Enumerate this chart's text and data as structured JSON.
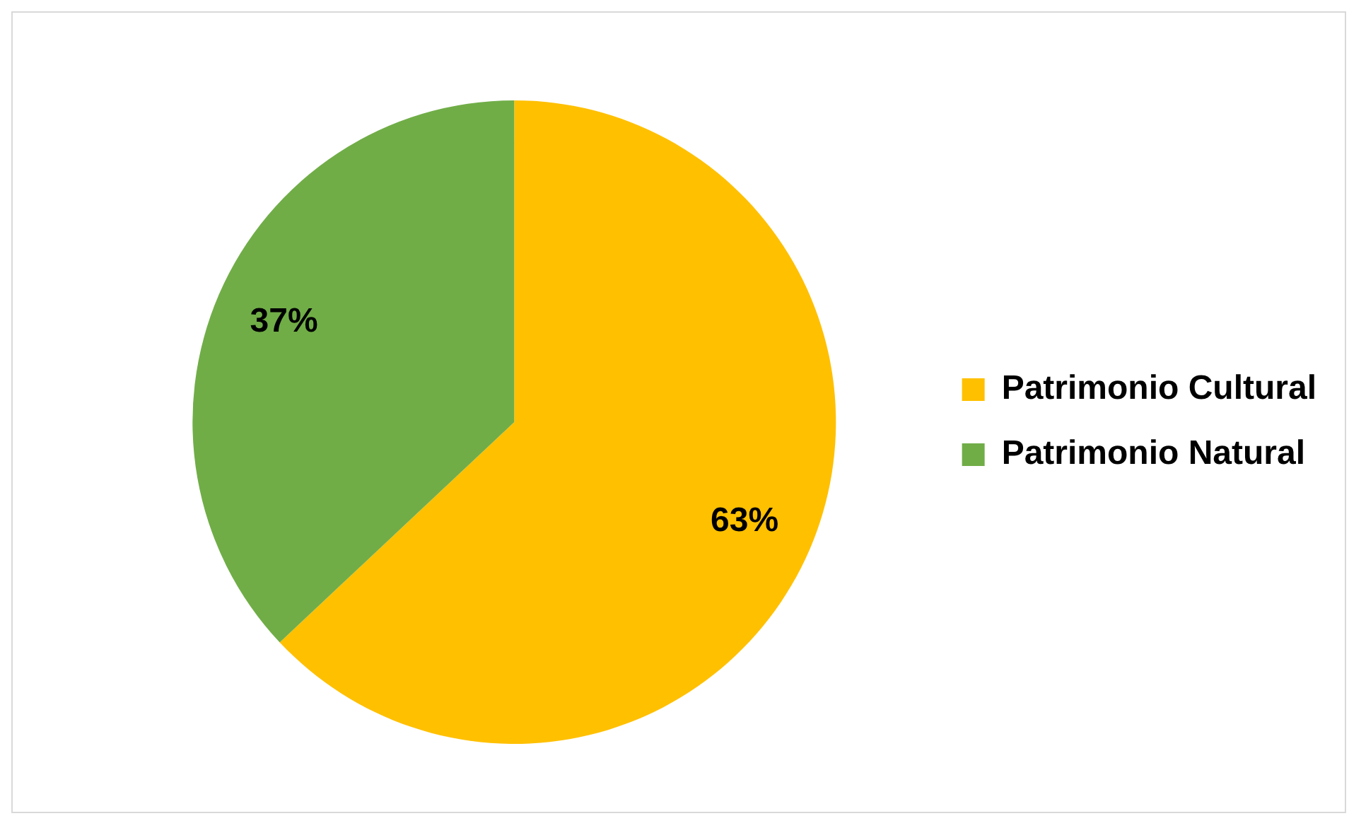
{
  "chart_data": {
    "type": "pie",
    "categories": [
      "Patrimonio Cultural",
      "Patrimonio Natural"
    ],
    "values": [
      63,
      37
    ],
    "colors": [
      "#ffc000",
      "#70ad47"
    ],
    "value_labels": [
      "63%",
      "37%"
    ],
    "legend": "right"
  }
}
